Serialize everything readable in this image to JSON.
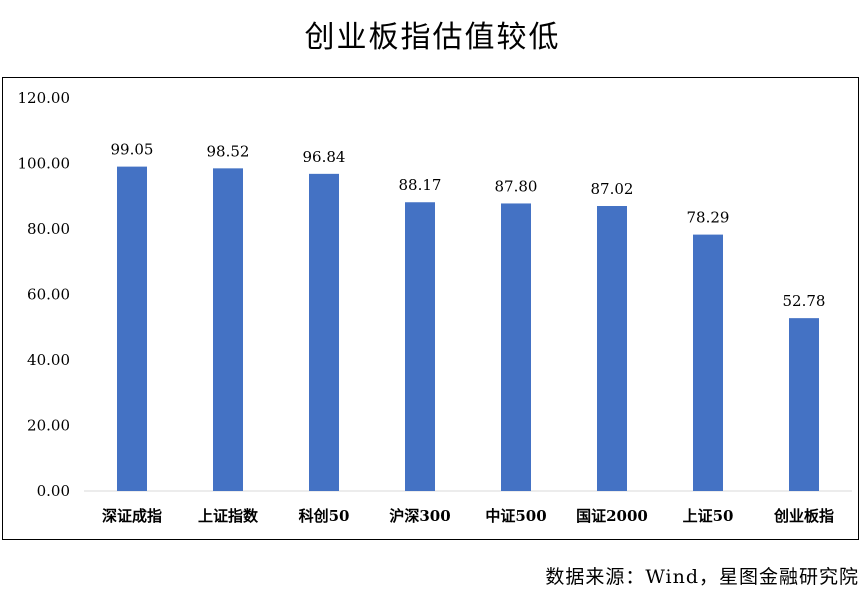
{
  "page": {
    "title": "创业板指估值较低",
    "source": "数据来源：Wind，星图金融研究院"
  },
  "colors": {
    "bar": "#4472C4",
    "axis": "#D9D9D9"
  },
  "chart_data": {
    "type": "bar",
    "title": "创业板指估值较低",
    "categories": [
      "深证成指",
      "上证指数",
      "科创50",
      "沪深300",
      "中证500",
      "国证2000",
      "上证50",
      "创业板指"
    ],
    "values": [
      99.05,
      98.52,
      96.84,
      88.17,
      87.8,
      87.02,
      78.29,
      52.78
    ],
    "value_labels": [
      "99.05",
      "98.52",
      "96.84",
      "88.17",
      "87.80",
      "87.02",
      "78.29",
      "52.78"
    ],
    "y_ticks": [
      "0.00",
      "20.00",
      "40.00",
      "60.00",
      "80.00",
      "100.00",
      "120.00"
    ],
    "ylim": [
      0,
      120
    ],
    "xlabel": "",
    "ylabel": "",
    "grid": false,
    "legend": "none"
  }
}
